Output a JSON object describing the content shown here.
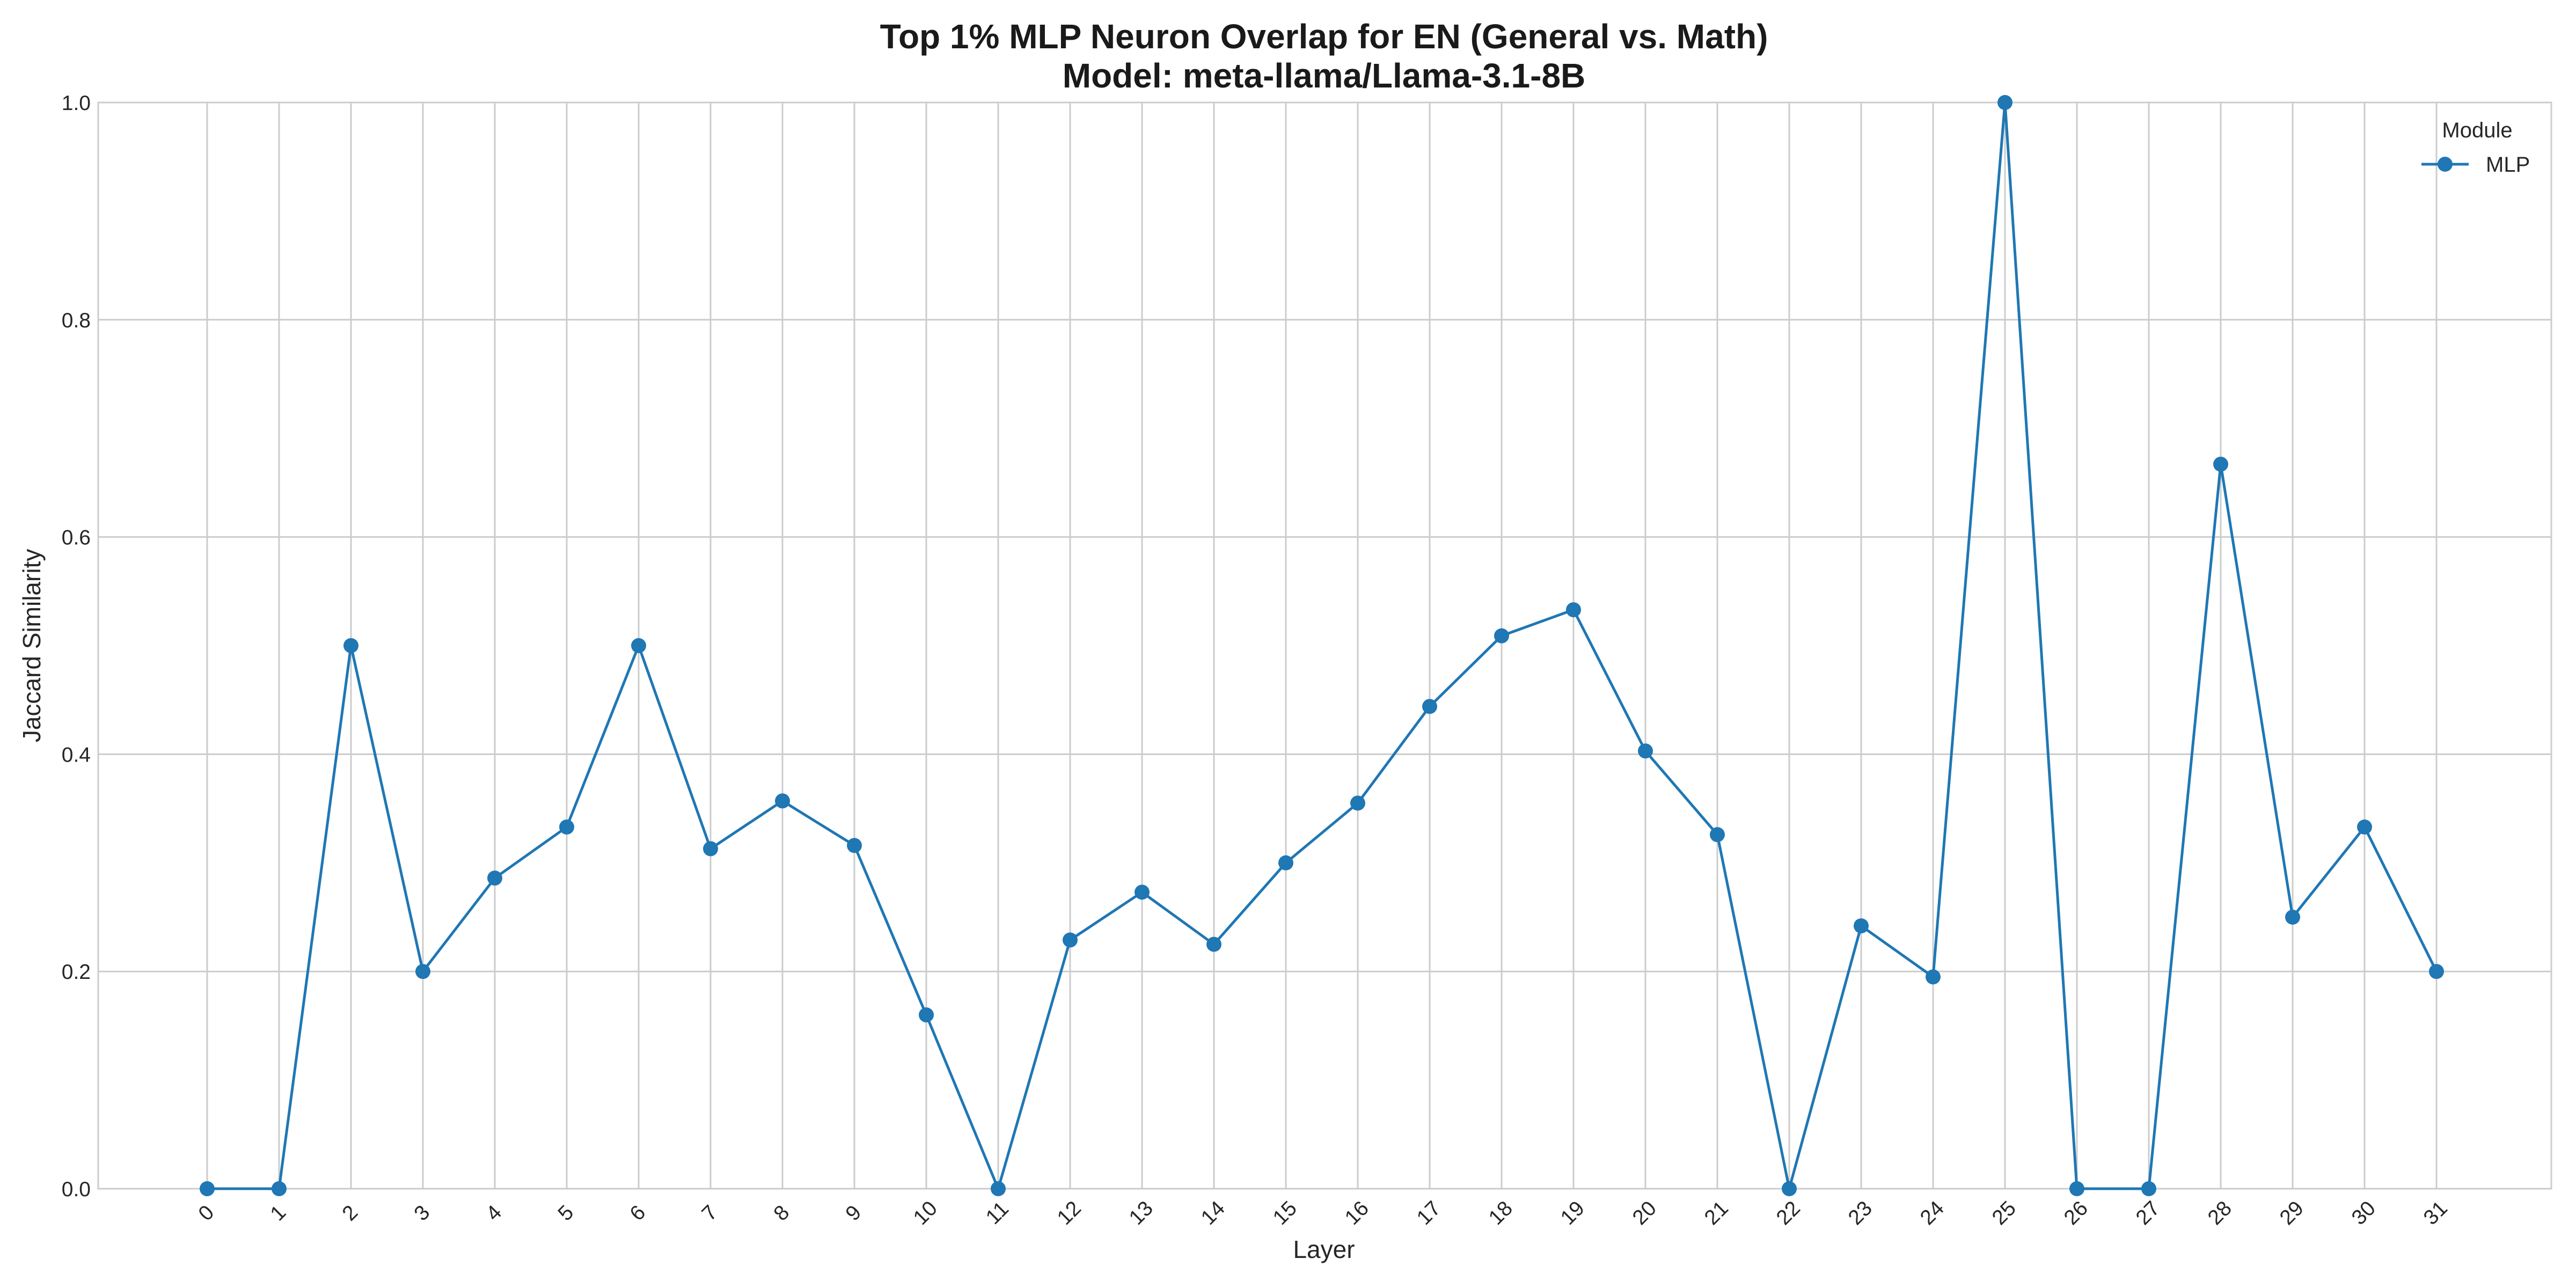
{
  "chart_data": {
    "type": "line",
    "title": "Top 1% MLP Neuron Overlap for EN (General vs. Math)",
    "subtitle": "Model: meta-llama/Llama-3.1-8B",
    "xlabel": "Layer",
    "ylabel": "Jaccard Similarity",
    "categories": [
      "0",
      "1",
      "2",
      "3",
      "4",
      "5",
      "6",
      "7",
      "8",
      "9",
      "10",
      "11",
      "12",
      "13",
      "14",
      "15",
      "16",
      "17",
      "18",
      "19",
      "20",
      "21",
      "22",
      "23",
      "24",
      "25",
      "26",
      "27",
      "28",
      "29",
      "30",
      "31"
    ],
    "ylim": [
      0,
      1.0
    ],
    "yticks": [
      "0.0",
      "0.2",
      "0.4",
      "0.6",
      "0.8",
      "1.0"
    ],
    "grid": true,
    "x_tick_rotation": -45,
    "legend": {
      "title": "Module",
      "placement": "top-right"
    },
    "series": [
      {
        "name": "MLP",
        "color": "#1f77b4",
        "values": [
          0.0,
          0.0,
          0.5,
          0.2,
          0.286,
          0.333,
          0.5,
          0.313,
          0.357,
          0.316,
          0.16,
          0.0,
          0.229,
          0.273,
          0.225,
          0.3,
          0.355,
          0.444,
          0.509,
          0.533,
          0.403,
          0.326,
          0.0,
          0.242,
          0.195,
          1.0,
          0.0,
          0.0,
          0.667,
          0.25,
          0.333,
          0.2
        ]
      }
    ]
  }
}
